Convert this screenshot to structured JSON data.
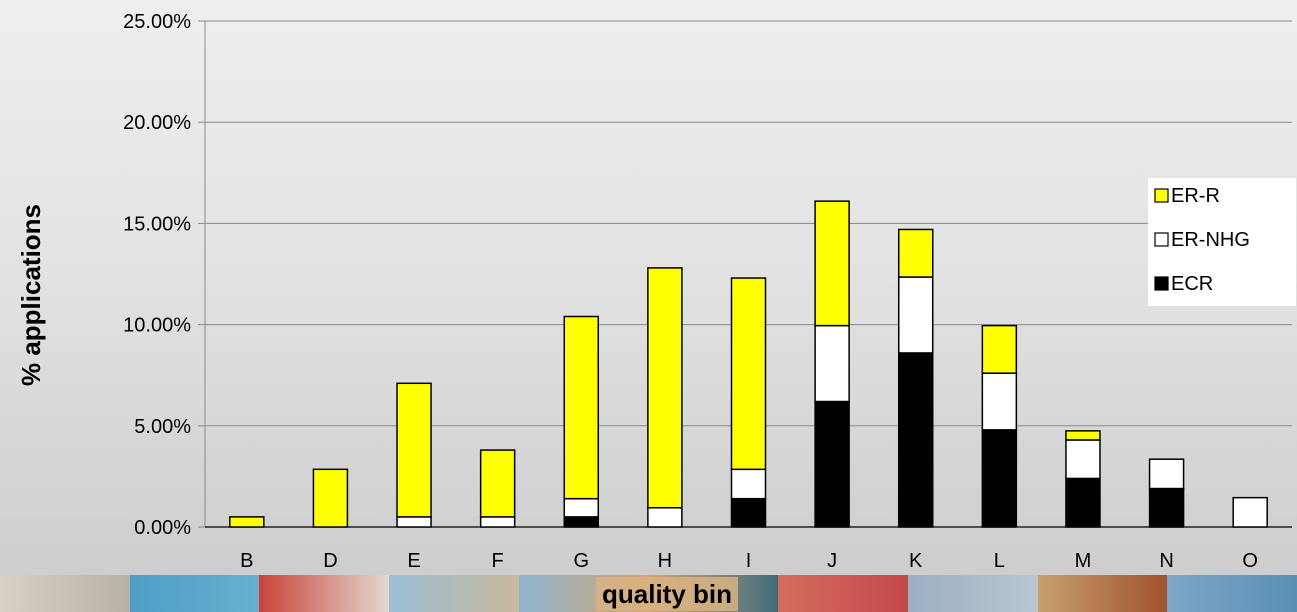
{
  "chart_data": {
    "type": "bar",
    "stacked": true,
    "categories": [
      "B",
      "D",
      "E",
      "F",
      "G",
      "H",
      "I",
      "J",
      "K",
      "L",
      "M",
      "N",
      "O"
    ],
    "series": [
      {
        "name": "ECR",
        "color": "#000000",
        "values": [
          0,
          0,
          0,
          0,
          0.5,
          0,
          1.4,
          6.2,
          8.6,
          4.8,
          2.4,
          1.9,
          0
        ]
      },
      {
        "name": "ER-NHG",
        "color": "#ffffff",
        "values": [
          0,
          0,
          0.5,
          0.5,
          0.9,
          0.95,
          1.45,
          3.75,
          3.75,
          2.8,
          1.9,
          1.45,
          1.45
        ]
      },
      {
        "name": "ER-R",
        "color": "#ffff00",
        "values": [
          0.5,
          2.85,
          6.6,
          3.3,
          9.0,
          11.85,
          9.45,
          6.15,
          2.35,
          2.35,
          0.45,
          0,
          0
        ]
      }
    ],
    "yticks": [
      "0.00%",
      "5.00%",
      "10.00%",
      "15.00%",
      "20.00%",
      "25.00%"
    ],
    "ylim": [
      0,
      25
    ],
    "xlabel": "quality bin",
    "ylabel": "% applications",
    "grid": true,
    "legend_position": "right"
  }
}
